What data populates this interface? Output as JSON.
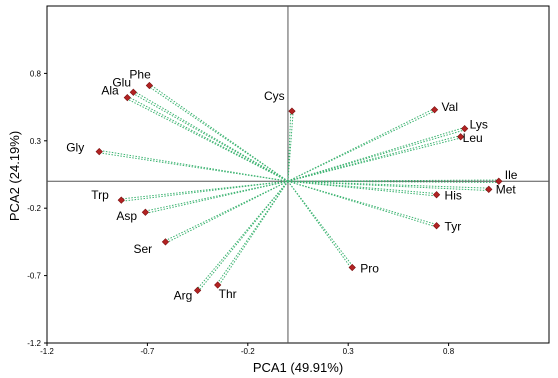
{
  "chart_data": {
    "type": "scatter",
    "xlabel": "PCA1 (49.91%)",
    "ylabel": "PCA2 (24.19%)",
    "xlim": [
      -1.2,
      1.3
    ],
    "ylim": [
      -1.2,
      1.3
    ],
    "xticks": [
      -1.2,
      -0.7,
      -0.2,
      0.3,
      0.8
    ],
    "xtick_labels": [
      "-1.2",
      "-0.7",
      "-0.2",
      "0.3",
      "0.8"
    ],
    "yticks": [
      -1.2,
      -0.7,
      -0.2,
      0.3,
      0.8
    ],
    "ytick_labels": [
      "-1.2",
      "-0.7",
      "-0.2",
      "0.3",
      "0.8"
    ],
    "grid": false,
    "vector_color": "#3cb371",
    "marker_color": "#b22222",
    "points": [
      {
        "label": "Glu",
        "x": -0.77,
        "y": 0.66
      },
      {
        "label": "Phe",
        "x": -0.69,
        "y": 0.71
      },
      {
        "label": "Ala",
        "x": -0.8,
        "y": 0.62
      },
      {
        "label": "Gly",
        "x": -0.94,
        "y": 0.22
      },
      {
        "label": "Cys",
        "x": 0.02,
        "y": 0.52
      },
      {
        "label": "Val",
        "x": 0.73,
        "y": 0.53
      },
      {
        "label": "Lys",
        "x": 0.88,
        "y": 0.39
      },
      {
        "label": "Leu",
        "x": 0.86,
        "y": 0.33
      },
      {
        "label": "Ile",
        "x": 1.05,
        "y": 0.0
      },
      {
        "label": "Met",
        "x": 1.0,
        "y": -0.06
      },
      {
        "label": "His",
        "x": 0.74,
        "y": -0.1
      },
      {
        "label": "Tyr",
        "x": 0.74,
        "y": -0.33
      },
      {
        "label": "Pro",
        "x": 0.32,
        "y": -0.64
      },
      {
        "label": "Trp",
        "x": -0.83,
        "y": -0.14
      },
      {
        "label": "Asp",
        "x": -0.71,
        "y": -0.23
      },
      {
        "label": "Ser",
        "x": -0.61,
        "y": -0.45
      },
      {
        "label": "Thr",
        "x": -0.35,
        "y": -0.77
      },
      {
        "label": "Arg",
        "x": -0.45,
        "y": -0.81
      }
    ]
  }
}
